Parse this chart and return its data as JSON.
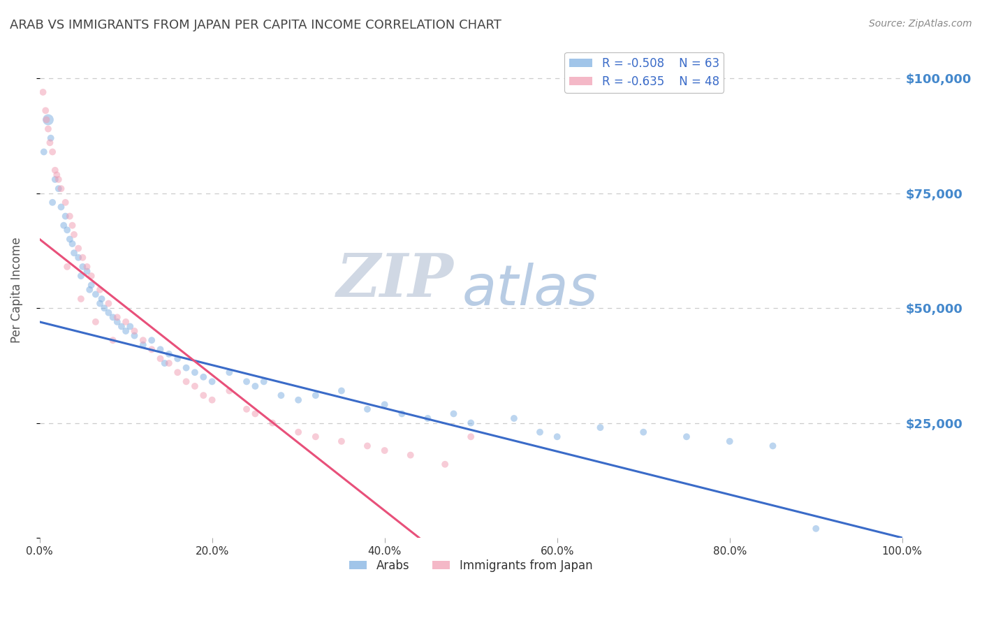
{
  "title": "ARAB VS IMMIGRANTS FROM JAPAN PER CAPITA INCOME CORRELATION CHART",
  "source_text": "Source: ZipAtlas.com",
  "ylabel": "Per Capita Income",
  "xlim": [
    0.0,
    100.0
  ],
  "ylim": [
    0,
    108000
  ],
  "yticks": [
    0,
    25000,
    50000,
    75000,
    100000
  ],
  "ytick_labels": [
    "",
    "$25,000",
    "$50,000",
    "$75,000",
    "$100,000"
  ],
  "xticks": [
    0,
    20,
    40,
    60,
    80,
    100
  ],
  "xtick_labels": [
    "0.0%",
    "20.0%",
    "40.0%",
    "60.0%",
    "80.0%",
    "100.0%"
  ],
  "legend1_label1": "R = -0.508    N = 63",
  "legend1_label2": "R = -0.635    N = 48",
  "legend2_label1": "Arabs",
  "legend2_label2": "Immigrants from Japan",
  "blue_color": "#7aade0",
  "pink_color": "#f09ab0",
  "blue_line_color": "#3a6bc8",
  "pink_line_color": "#e8507a",
  "watermark_zip": "ZIP",
  "watermark_atlas": "atlas",
  "watermark_zip_color": "#d0d8e4",
  "watermark_atlas_color": "#b8cce4",
  "background_color": "#ffffff",
  "grid_color": "#cccccc",
  "title_color": "#444444",
  "axis_label_color": "#555555",
  "ytick_label_color": "#4488cc",
  "source_color": "#888888",
  "blue_scatter_x": [
    1.0,
    1.3,
    0.5,
    1.8,
    2.2,
    1.5,
    2.5,
    3.0,
    2.8,
    3.5,
    3.2,
    4.0,
    3.8,
    4.5,
    5.0,
    5.5,
    4.8,
    6.0,
    5.8,
    6.5,
    7.0,
    7.5,
    8.0,
    7.2,
    8.5,
    9.0,
    9.5,
    10.0,
    11.0,
    10.5,
    12.0,
    13.0,
    14.0,
    15.0,
    14.5,
    16.0,
    17.0,
    18.0,
    19.0,
    20.0,
    22.0,
    24.0,
    25.0,
    26.0,
    28.0,
    30.0,
    32.0,
    35.0,
    38.0,
    40.0,
    42.0,
    45.0,
    48.0,
    50.0,
    55.0,
    58.0,
    60.0,
    65.0,
    70.0,
    75.0,
    80.0,
    85.0,
    90.0
  ],
  "blue_scatter_y": [
    91000,
    87000,
    84000,
    78000,
    76000,
    73000,
    72000,
    70000,
    68000,
    65000,
    67000,
    62000,
    64000,
    61000,
    59000,
    58000,
    57000,
    55000,
    54000,
    53000,
    51000,
    50000,
    49000,
    52000,
    48000,
    47000,
    46000,
    45000,
    44000,
    46000,
    42000,
    43000,
    41000,
    40000,
    38000,
    39000,
    37000,
    36000,
    35000,
    34000,
    36000,
    34000,
    33000,
    34000,
    31000,
    30000,
    31000,
    32000,
    28000,
    29000,
    27000,
    26000,
    27000,
    25000,
    26000,
    23000,
    22000,
    24000,
    23000,
    22000,
    21000,
    20000,
    2000
  ],
  "blue_scatter_size": [
    130,
    50,
    50,
    50,
    50,
    50,
    50,
    50,
    50,
    50,
    50,
    50,
    50,
    50,
    50,
    50,
    50,
    50,
    50,
    50,
    50,
    50,
    50,
    50,
    50,
    50,
    50,
    50,
    50,
    50,
    50,
    50,
    50,
    50,
    50,
    50,
    50,
    50,
    50,
    50,
    50,
    50,
    50,
    50,
    50,
    50,
    50,
    50,
    50,
    50,
    50,
    50,
    50,
    50,
    50,
    50,
    50,
    50,
    50,
    50,
    50,
    50,
    50
  ],
  "pink_scatter_x": [
    0.4,
    0.7,
    1.0,
    1.2,
    1.5,
    0.8,
    1.8,
    2.0,
    2.5,
    2.2,
    3.0,
    3.5,
    3.8,
    4.0,
    4.5,
    5.0,
    5.5,
    6.0,
    7.0,
    8.0,
    9.0,
    10.0,
    11.0,
    12.0,
    13.0,
    14.0,
    15.0,
    16.0,
    17.0,
    18.0,
    19.0,
    20.0,
    22.0,
    24.0,
    25.0,
    27.0,
    30.0,
    32.0,
    35.0,
    38.0,
    40.0,
    43.0,
    47.0,
    50.0,
    6.5,
    8.5,
    3.2,
    4.8
  ],
  "pink_scatter_y": [
    97000,
    93000,
    89000,
    86000,
    84000,
    91000,
    80000,
    79000,
    76000,
    78000,
    73000,
    70000,
    68000,
    66000,
    63000,
    61000,
    59000,
    57000,
    54000,
    51000,
    48000,
    47000,
    45000,
    43000,
    41000,
    39000,
    38000,
    36000,
    34000,
    33000,
    31000,
    30000,
    32000,
    28000,
    27000,
    25000,
    23000,
    22000,
    21000,
    20000,
    19000,
    18000,
    16000,
    22000,
    47000,
    43000,
    59000,
    52000
  ],
  "pink_scatter_size": [
    50,
    50,
    50,
    50,
    50,
    50,
    50,
    50,
    50,
    50,
    50,
    50,
    50,
    50,
    50,
    50,
    50,
    50,
    50,
    50,
    50,
    50,
    50,
    50,
    50,
    50,
    50,
    50,
    50,
    50,
    50,
    50,
    50,
    50,
    50,
    50,
    50,
    50,
    50,
    50,
    50,
    50,
    50,
    50,
    50,
    50,
    50,
    50
  ],
  "blue_line_x0": 0.0,
  "blue_line_x1": 100.0,
  "blue_line_y0": 47000,
  "blue_line_y1": 0,
  "pink_line_x0": 0.0,
  "pink_line_x1": 44.0,
  "pink_line_y0": 65000,
  "pink_line_y1": 0
}
